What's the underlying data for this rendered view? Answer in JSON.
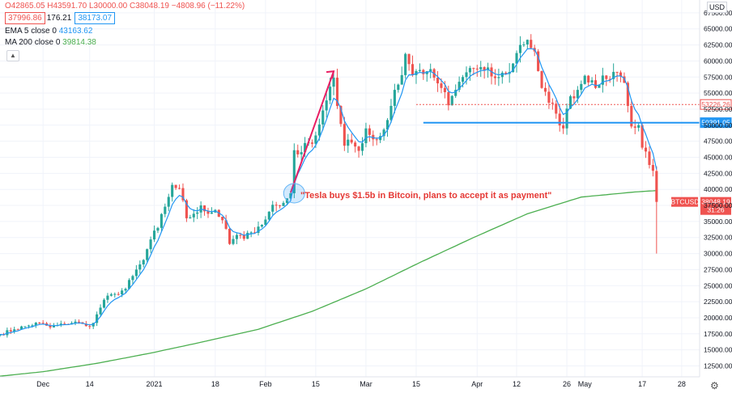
{
  "legend": {
    "ohlc": "O42865.05  H43591.70  L30000.00  C38048.19  −4808.96 (−11.22%)",
    "bid": "37996.86",
    "spread": "176.21",
    "ask": "38173.07",
    "ema_label": "EMA 5 close 0",
    "ema_value": "43163.62",
    "ma_label": "MA 200 close 0",
    "ma_value": "39814.38"
  },
  "annotation": "\"Tesla buys $1.5b in Bitcoin, plans to accept it as payment\"",
  "currency": "USD",
  "icons": {
    "collapse": "collapse-icon",
    "settings": "gear-icon"
  },
  "colors": {
    "up": "#26a69a",
    "down": "#ef5350",
    "ema": "#2196f3",
    "ma": "#4caf50",
    "annotation": "#e53935",
    "hline": "#2196f3"
  },
  "chart_data": {
    "type": "candlestick",
    "symbol": "BTCUSD",
    "price_tag": "38048.19",
    "countdown": "31:26",
    "y_ticks": [
      12500,
      15000,
      17500,
      20000,
      22500,
      25000,
      27500,
      30000,
      32500,
      35000,
      37500,
      40000,
      42500,
      45000,
      47500,
      50000,
      52500,
      55000,
      57500,
      60000,
      62500,
      65000,
      67500
    ],
    "y_tick_labels": [
      "12500.00",
      "15000.00",
      "17500.00",
      "20000.00",
      "22500.00",
      "25000.00",
      "27500.00",
      "30000.00",
      "32500.00",
      "35000.00",
      "37500.00",
      "40000.00",
      "42500.00",
      "45000.00",
      "47500.00",
      "50000.00",
      "52500.00",
      "55000.00",
      "57500.00",
      "60000.00",
      "62500.00",
      "65000.00",
      "67500.00"
    ],
    "ylim": [
      10800,
      69500
    ],
    "x_ticks": [
      {
        "label": "Dec",
        "day": 0
      },
      {
        "label": "14",
        "day": 13
      },
      {
        "label": "2021",
        "day": 31
      },
      {
        "label": "18",
        "day": 48
      },
      {
        "label": "Feb",
        "day": 62
      },
      {
        "label": "15",
        "day": 76
      },
      {
        "label": "Mar",
        "day": 90
      },
      {
        "label": "15",
        "day": 104
      },
      {
        "label": "Apr",
        "day": 121
      },
      {
        "label": "12",
        "day": 132
      },
      {
        "label": "26",
        "day": 146
      },
      {
        "label": "May",
        "day": 151
      },
      {
        "label": "17",
        "day": 167
      },
      {
        "label": "28",
        "day": 178
      }
    ],
    "xlim": [
      -12,
      183
    ],
    "horizontal_lines": [
      {
        "value": 53226.26,
        "label": "53226.26",
        "style": "dotted",
        "color": "#ef5350",
        "from_day": 104
      },
      {
        "value": 50391.05,
        "label": "50391.05",
        "style": "solid",
        "color": "#2196f3",
        "from_day": 106
      }
    ],
    "trend_arrow": {
      "from": {
        "day": 69,
        "value": 39500
      },
      "to": {
        "day": 81,
        "value": 58400
      }
    },
    "callout_circle": {
      "day": 70,
      "value": 39400
    },
    "anchors": [
      [
        -12,
        17400
      ],
      [
        -8,
        18200
      ],
      [
        -4,
        18800
      ],
      [
        -1,
        19200
      ],
      [
        2,
        18500
      ],
      [
        6,
        19000
      ],
      [
        9,
        19400
      ],
      [
        12,
        18700
      ],
      [
        14,
        19200
      ],
      [
        17,
        22800
      ],
      [
        20,
        23700
      ],
      [
        23,
        24500
      ],
      [
        25,
        26500
      ],
      [
        28,
        29000
      ],
      [
        30,
        32200
      ],
      [
        32,
        34000
      ],
      [
        34,
        37300
      ],
      [
        36,
        40700
      ],
      [
        38,
        40200
      ],
      [
        40,
        35500
      ],
      [
        42,
        36200
      ],
      [
        44,
        37500
      ],
      [
        46,
        36200
      ],
      [
        48,
        36800
      ],
      [
        50,
        35200
      ],
      [
        52,
        31500
      ],
      [
        54,
        32900
      ],
      [
        56,
        32300
      ],
      [
        58,
        33300
      ],
      [
        60,
        34200
      ],
      [
        62,
        35300
      ],
      [
        64,
        37600
      ],
      [
        66,
        37400
      ],
      [
        68,
        38600
      ],
      [
        69,
        39400
      ],
      [
        70,
        46100
      ],
      [
        72,
        45800
      ],
      [
        74,
        47300
      ],
      [
        76,
        48400
      ],
      [
        78,
        52300
      ],
      [
        80,
        56000
      ],
      [
        81,
        57400
      ],
      [
        82,
        53000
      ],
      [
        84,
        46800
      ],
      [
        86,
        47300
      ],
      [
        88,
        46000
      ],
      [
        90,
        49500
      ],
      [
        92,
        47800
      ],
      [
        94,
        48300
      ],
      [
        96,
        50800
      ],
      [
        98,
        55500
      ],
      [
        100,
        57800
      ],
      [
        101,
        61100
      ],
      [
        103,
        57800
      ],
      [
        105,
        58600
      ],
      [
        107,
        58400
      ],
      [
        109,
        57400
      ],
      [
        111,
        55800
      ],
      [
        113,
        53100
      ],
      [
        115,
        55500
      ],
      [
        117,
        57500
      ],
      [
        119,
        58900
      ],
      [
        121,
        58700
      ],
      [
        123,
        58600
      ],
      [
        125,
        57600
      ],
      [
        127,
        57500
      ],
      [
        129,
        58000
      ],
      [
        131,
        59600
      ],
      [
        133,
        62500
      ],
      [
        135,
        63300
      ],
      [
        137,
        61500
      ],
      [
        139,
        55800
      ],
      [
        141,
        53500
      ],
      [
        143,
        51800
      ],
      [
        145,
        49500
      ],
      [
        147,
        54500
      ],
      [
        149,
        55500
      ],
      [
        151,
        57700
      ],
      [
        153,
        57000
      ],
      [
        155,
        56300
      ],
      [
        157,
        57200
      ],
      [
        159,
        58300
      ],
      [
        161,
        57600
      ],
      [
        162,
        56600
      ],
      [
        163,
        53000
      ],
      [
        164,
        49800
      ],
      [
        165,
        49600
      ],
      [
        166,
        50000
      ],
      [
        167,
        46500
      ],
      [
        168,
        45900
      ],
      [
        169,
        43800
      ],
      [
        170,
        42900
      ],
      [
        171,
        38048
      ]
    ],
    "last_candle": {
      "day": 171,
      "open": 42865.05,
      "high": 43591.7,
      "low": 30000.0,
      "close": 38048.19
    },
    "ma200": [
      [
        -12,
        10900
      ],
      [
        0,
        11600
      ],
      [
        15,
        12900
      ],
      [
        30,
        14500
      ],
      [
        45,
        16300
      ],
      [
        60,
        18200
      ],
      [
        75,
        21000
      ],
      [
        90,
        24500
      ],
      [
        105,
        28600
      ],
      [
        120,
        32500
      ],
      [
        135,
        36200
      ],
      [
        150,
        38800
      ],
      [
        165,
        39600
      ],
      [
        171,
        39814
      ]
    ]
  }
}
